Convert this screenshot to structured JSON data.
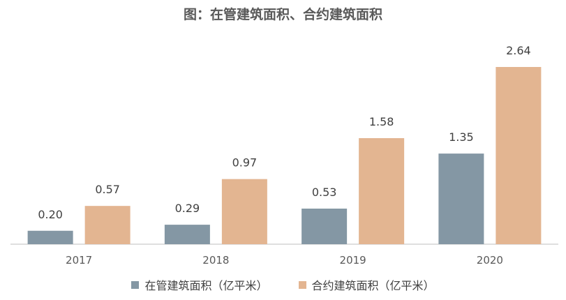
{
  "chart_data": {
    "type": "bar",
    "title": "图：在管建筑面积、合约建筑面积",
    "categories": [
      "2017",
      "2018",
      "2019",
      "2020"
    ],
    "series": [
      {
        "name": "在管建筑面积（亿平米）",
        "color": "#8497a4",
        "values": [
          0.2,
          0.29,
          0.53,
          1.35
        ]
      },
      {
        "name": "合约建筑面积（亿平米）",
        "color": "#e3b591",
        "values": [
          0.57,
          0.97,
          1.58,
          2.64
        ]
      }
    ],
    "ylim": [
      0,
      2.64
    ],
    "grid": false,
    "legend_position": "bottom"
  }
}
